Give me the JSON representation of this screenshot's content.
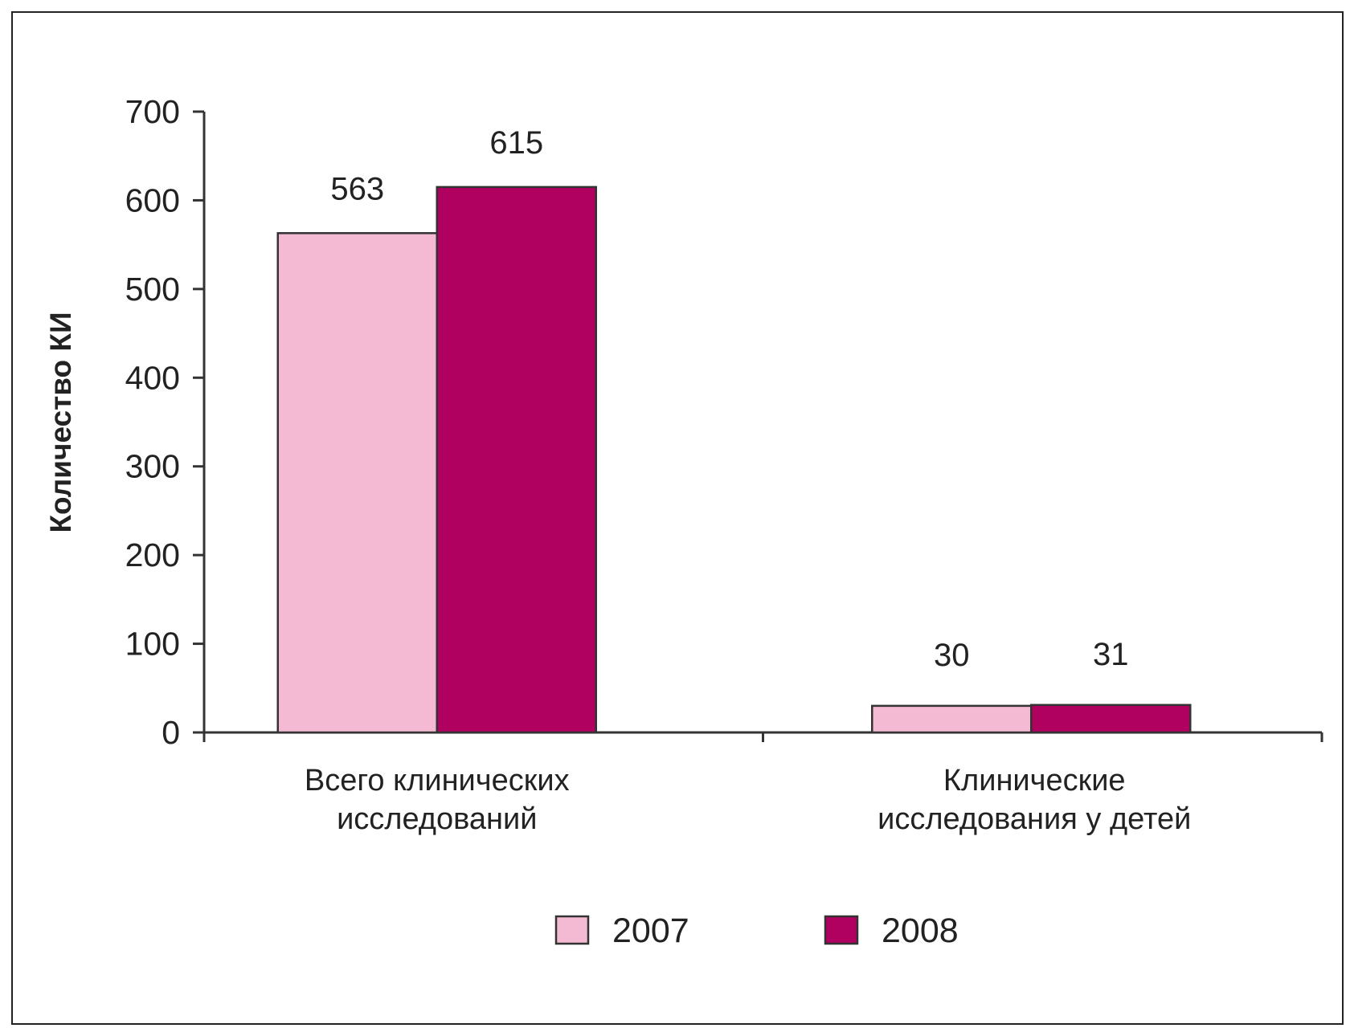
{
  "chart_data": {
    "type": "bar",
    "title": "",
    "xlabel": "",
    "ylabel": "Количество КИ",
    "categories": [
      [
        "Всего клинических",
        "исследований"
      ],
      [
        "Клинические",
        "исследования у детей"
      ]
    ],
    "series": [
      {
        "name": "2007",
        "color": "#f4b9d3",
        "values": [
          563,
          30
        ]
      },
      {
        "name": "2008",
        "color": "#b00060",
        "values": [
          615,
          31
        ]
      }
    ],
    "ylim": [
      0,
      700
    ],
    "yticks": [
      0,
      100,
      200,
      300,
      400,
      500,
      600,
      700
    ],
    "grid": false,
    "legend_position": "bottom"
  }
}
